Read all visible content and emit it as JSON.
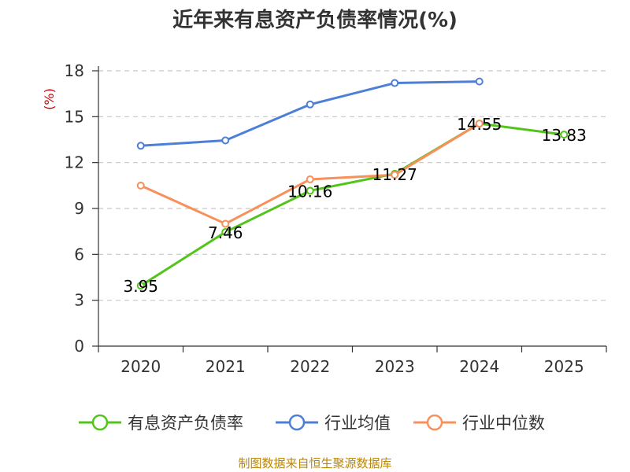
{
  "chart_data": {
    "type": "line",
    "title": "近年来有息资产负债率情况(%)",
    "ylabel": "(%)",
    "xlabel": "",
    "categories": [
      "2020",
      "2021",
      "2022",
      "2023",
      "2024",
      "2025"
    ],
    "ylim": [
      0,
      18
    ],
    "yticks": [
      0,
      3,
      6,
      9,
      12,
      15,
      18
    ],
    "grid": true,
    "legend_position": "bottom",
    "series": [
      {
        "name": "有息资产负债率",
        "color": "#52c41a",
        "values": [
          3.95,
          7.46,
          10.16,
          11.27,
          14.55,
          13.83
        ],
        "labels": [
          "3.95",
          "7.46",
          "10.16",
          "11.27",
          "14.55",
          "13.83"
        ]
      },
      {
        "name": "行业均值",
        "color": "#4e7fd6",
        "values": [
          13.1,
          13.45,
          15.8,
          17.2,
          17.3,
          null
        ]
      },
      {
        "name": "行业中位数",
        "color": "#f7905a",
        "values": [
          10.5,
          8.0,
          10.9,
          11.2,
          14.55,
          null
        ]
      }
    ],
    "source": "制图数据来自恒生聚源数据库"
  }
}
